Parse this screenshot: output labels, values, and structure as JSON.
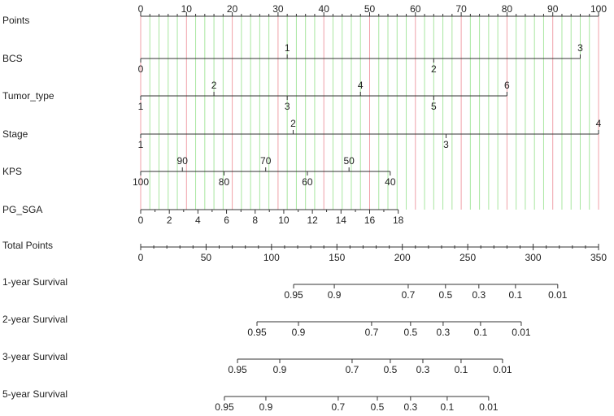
{
  "chart_data": {
    "type": "nomogram",
    "points_axis": {
      "name": "Points",
      "xlim": [
        0,
        100
      ],
      "xticks": [
        0,
        10,
        20,
        30,
        40,
        50,
        60,
        70,
        80,
        90,
        100
      ],
      "xminor": [
        2,
        4,
        6,
        8,
        12,
        14,
        16,
        18,
        22,
        24,
        26,
        28,
        32,
        34,
        36,
        38,
        42,
        44,
        46,
        48,
        52,
        54,
        56,
        58,
        62,
        64,
        66,
        68,
        72,
        74,
        76,
        78,
        82,
        84,
        86,
        88,
        92,
        94,
        96,
        98
      ],
      "grid": true,
      "major_color": "#f0a0a8",
      "minor_color": "#a8e6a0"
    },
    "variables": [
      {
        "name": "BCS",
        "levels": [
          0,
          1,
          2,
          3
        ],
        "points": [
          0,
          32,
          64,
          96
        ]
      },
      {
        "name": "Tumor_type",
        "levels": [
          1,
          2,
          3,
          4,
          5,
          6
        ],
        "points": [
          0,
          16,
          32,
          48,
          64,
          80
        ]
      },
      {
        "name": "Stage",
        "levels": [
          1,
          2,
          3,
          4
        ],
        "points": [
          0,
          33.3,
          66.7,
          100
        ]
      },
      {
        "name": "KPS",
        "levels": [
          100,
          90,
          80,
          70,
          60,
          50,
          40
        ],
        "points": [
          0,
          9.1,
          18.2,
          27.3,
          36.4,
          45.5,
          54.5
        ]
      },
      {
        "name": "PG_SGA",
        "levels": [
          0,
          null,
          2,
          null,
          4,
          null,
          6,
          null,
          8,
          null,
          10,
          null,
          12,
          null,
          14,
          null,
          16,
          null,
          18
        ],
        "points": [
          0,
          3.13,
          6.25,
          9.38,
          12.5,
          15.6,
          18.75,
          21.9,
          25,
          28.1,
          31.25,
          34.4,
          37.5,
          40.6,
          43.75,
          46.9,
          50,
          53.1,
          56.25
        ]
      }
    ],
    "total_axis": {
      "name": "Total Points",
      "xlim": [
        0,
        350
      ],
      "xticks": [
        0,
        50,
        100,
        150,
        200,
        250,
        300,
        350
      ],
      "xminor": [
        10,
        20,
        30,
        40,
        60,
        70,
        80,
        90,
        110,
        120,
        130,
        140,
        160,
        170,
        180,
        190,
        210,
        220,
        230,
        240,
        260,
        270,
        280,
        290,
        310,
        320,
        330,
        340
      ]
    },
    "outcomes": [
      {
        "name": "1-year Survival",
        "levels": [
          0.95,
          0.9,
          0.7,
          0.5,
          0.3,
          0.1,
          0.01
        ],
        "points": [
          116.9,
          148,
          204.5,
          233,
          258.5,
          286.5,
          318.8
        ]
      },
      {
        "name": "2-year Survival",
        "levels": [
          0.95,
          0.9,
          0.7,
          0.5,
          0.3,
          0.1,
          0.01
        ],
        "points": [
          88.9,
          120.6,
          176.5,
          206.3,
          231.2,
          259.8,
          290.9
        ]
      },
      {
        "name": "3-year Survival",
        "levels": [
          0.95,
          0.9,
          0.7,
          0.5,
          0.3,
          0.1,
          0.01
        ],
        "points": [
          74,
          106.3,
          161.6,
          190.8,
          215.7,
          244.9,
          276.6
        ]
      },
      {
        "name": "5-year Survival",
        "levels": [
          0.95,
          0.9,
          0.7,
          0.5,
          0.3,
          0.1,
          0.01
        ],
        "points": [
          64,
          95.7,
          151,
          180.9,
          206.3,
          234.3,
          266
        ]
      }
    ]
  }
}
